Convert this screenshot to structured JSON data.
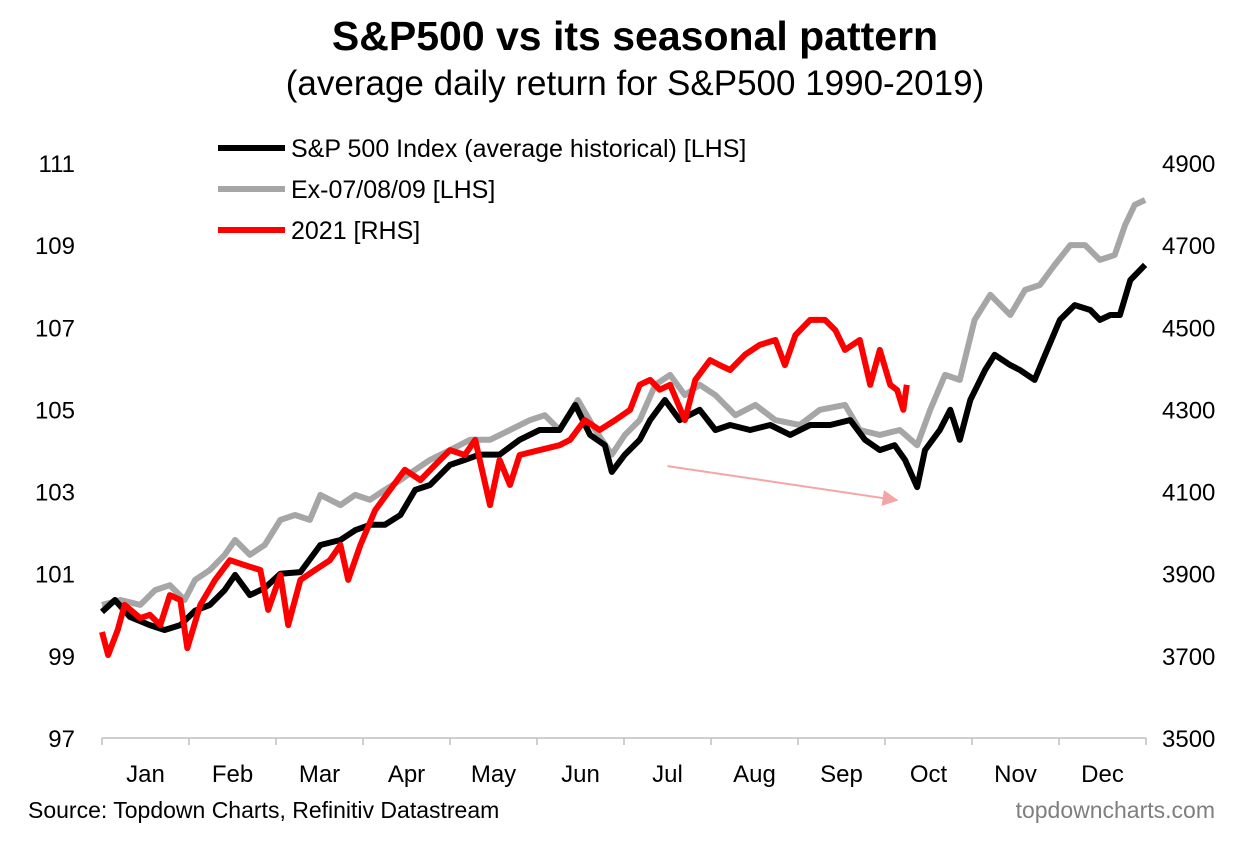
{
  "chart_data": {
    "type": "line",
    "title": "S&P500 vs its seasonal pattern",
    "subtitle": "(average daily return for S&P500 1990-2019)",
    "source": "Source: Topdown Charts, Refinitiv Datastream",
    "watermark": "topdowncharts.com",
    "x_tick_labels": [
      "Jan",
      "Feb",
      "Mar",
      "Apr",
      "May",
      "Jun",
      "Jul",
      "Aug",
      "Sep",
      "Oct",
      "Nov",
      "Dec"
    ],
    "y_left": {
      "ticks": [
        97,
        99,
        101,
        103,
        105,
        107,
        109,
        111
      ],
      "range": [
        97,
        111
      ]
    },
    "y_right": {
      "ticks": [
        3500,
        3700,
        3900,
        4100,
        4300,
        4500,
        4700,
        4900
      ],
      "range": [
        3500,
        4900
      ]
    },
    "grid": false,
    "legend_placement": "top-left",
    "annotation": {
      "type": "arrow",
      "color": "#f4a6a6",
      "from": [
        6.5,
        103.62
      ],
      "to": [
        9.11,
        102.8
      ]
    },
    "series": [
      {
        "name": "S&P 500 Index (average historical) [LHS]",
        "axis": "left",
        "color": "#000000",
        "x": [
          0,
          0.15,
          0.32,
          0.55,
          0.72,
          0.9,
          1.07,
          1.24,
          1.41,
          1.53,
          1.7,
          1.87,
          2.05,
          2.28,
          2.51,
          2.74,
          2.91,
          3.08,
          3.25,
          3.43,
          3.6,
          3.77,
          4.0,
          4.17,
          4.34,
          4.57,
          4.8,
          5.03,
          5.26,
          5.44,
          5.61,
          5.78,
          5.86,
          6.01,
          6.18,
          6.3,
          6.47,
          6.64,
          6.87,
          7.05,
          7.22,
          7.45,
          7.68,
          7.91,
          8.14,
          8.37,
          8.6,
          8.77,
          8.94,
          9.11,
          9.23,
          9.37,
          9.46,
          9.63,
          9.75,
          9.86,
          9.98,
          10.15,
          10.26,
          10.44,
          10.55,
          10.72,
          10.84,
          11.01,
          11.18,
          11.36,
          11.47,
          11.59,
          11.7,
          11.82,
          11.99
        ],
        "y": [
          100.07,
          100.36,
          99.95,
          99.75,
          99.63,
          99.75,
          100.1,
          100.24,
          100.6,
          100.97,
          100.48,
          100.65,
          101.0,
          101.04,
          101.7,
          101.82,
          102.06,
          102.19,
          102.19,
          102.43,
          103.04,
          103.16,
          103.65,
          103.77,
          103.9,
          103.9,
          104.26,
          104.5,
          104.5,
          105.11,
          104.38,
          104.13,
          103.48,
          103.9,
          104.26,
          104.74,
          105.23,
          104.74,
          104.99,
          104.5,
          104.62,
          104.5,
          104.62,
          104.38,
          104.62,
          104.62,
          104.74,
          104.26,
          104.01,
          104.13,
          103.77,
          103.11,
          104.01,
          104.5,
          104.99,
          104.26,
          105.23,
          105.96,
          106.33,
          106.08,
          105.96,
          105.72,
          106.33,
          107.18,
          107.54,
          107.42,
          107.18,
          107.3,
          107.3,
          108.15,
          108.52
        ]
      },
      {
        "name": "Ex-07/08/09 [LHS]",
        "axis": "left",
        "color": "#a6a6a6",
        "x": [
          0,
          0.21,
          0.44,
          0.61,
          0.78,
          0.95,
          1.07,
          1.24,
          1.41,
          1.53,
          1.7,
          1.87,
          2.05,
          2.22,
          2.39,
          2.51,
          2.74,
          2.91,
          3.08,
          3.25,
          3.43,
          3.6,
          3.77,
          4.0,
          4.23,
          4.46,
          4.69,
          4.92,
          5.09,
          5.26,
          5.47,
          5.67,
          5.86,
          6.01,
          6.18,
          6.36,
          6.53,
          6.7,
          6.87,
          7.05,
          7.28,
          7.51,
          7.74,
          8.02,
          8.25,
          8.54,
          8.71,
          8.94,
          9.17,
          9.37,
          9.52,
          9.69,
          9.86,
          10.03,
          10.21,
          10.44,
          10.61,
          10.78,
          10.95,
          11.13,
          11.3,
          11.47,
          11.64,
          11.76,
          11.87,
          11.99
        ],
        "y": [
          100.24,
          100.36,
          100.24,
          100.6,
          100.72,
          100.36,
          100.85,
          101.09,
          101.46,
          101.82,
          101.46,
          101.7,
          102.31,
          102.43,
          102.31,
          102.92,
          102.67,
          102.92,
          102.8,
          103.04,
          103.28,
          103.53,
          103.77,
          104.01,
          104.26,
          104.26,
          104.5,
          104.74,
          104.86,
          104.5,
          105.23,
          104.5,
          103.9,
          104.38,
          104.74,
          105.6,
          105.84,
          105.35,
          105.6,
          105.35,
          104.86,
          105.11,
          104.74,
          104.62,
          104.99,
          105.11,
          104.5,
          104.38,
          104.5,
          104.13,
          104.99,
          105.84,
          105.72,
          107.18,
          107.79,
          107.3,
          107.91,
          108.03,
          108.52,
          109.0,
          109.0,
          108.64,
          108.76,
          109.49,
          109.98,
          110.1
        ]
      },
      {
        "name": "2021 [RHS]",
        "axis": "right",
        "color": "#ff0000",
        "x": [
          0,
          0.07,
          0.18,
          0.26,
          0.44,
          0.55,
          0.67,
          0.78,
          0.9,
          0.98,
          1.13,
          1.3,
          1.47,
          1.64,
          1.82,
          1.91,
          2.05,
          2.14,
          2.28,
          2.45,
          2.62,
          2.74,
          2.83,
          2.97,
          3.14,
          3.31,
          3.48,
          3.66,
          3.83,
          4.0,
          4.17,
          4.29,
          4.46,
          4.57,
          4.69,
          4.8,
          5.03,
          5.26,
          5.38,
          5.55,
          5.72,
          5.9,
          6.07,
          6.18,
          6.3,
          6.41,
          6.53,
          6.7,
          6.82,
          6.99,
          7.1,
          7.22,
          7.39,
          7.56,
          7.74,
          7.85,
          7.97,
          8.14,
          8.31,
          8.43,
          8.54,
          8.71,
          8.83,
          8.94,
          9.06,
          9.14,
          9.21,
          9.25
        ],
        "y": [
          3758,
          3702,
          3763,
          3824,
          3792,
          3800,
          3775,
          3848,
          3836,
          3719,
          3824,
          3885,
          3933,
          3921,
          3909,
          3812,
          3897,
          3775,
          3885,
          3909,
          3933,
          3970,
          3885,
          3970,
          4055,
          4104,
          4153,
          4128,
          4165,
          4201,
          4189,
          4226,
          4067,
          4177,
          4116,
          4189,
          4201,
          4213,
          4226,
          4274,
          4250,
          4274,
          4299,
          4360,
          4372,
          4348,
          4360,
          4274,
          4372,
          4420,
          4408,
          4396,
          4433,
          4457,
          4469,
          4408,
          4481,
          4518,
          4518,
          4493,
          4445,
          4469,
          4360,
          4445,
          4360,
          4347,
          4299,
          4360
        ]
      }
    ]
  }
}
